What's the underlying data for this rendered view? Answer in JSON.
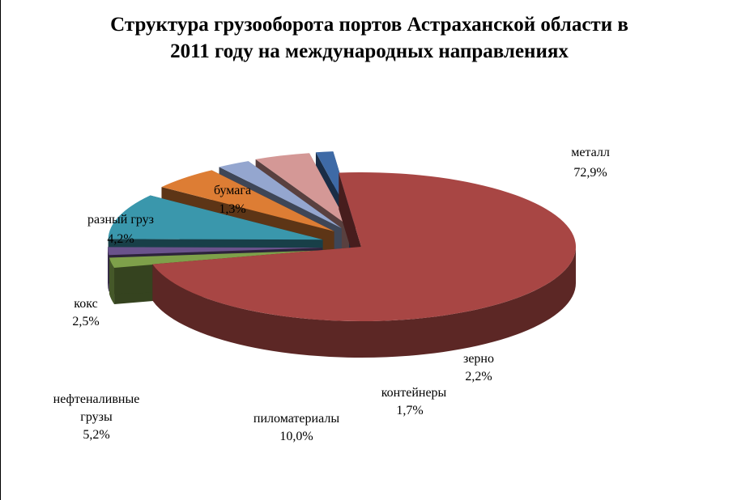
{
  "chart_data": {
    "type": "pie",
    "title": "Структура грузооборота портов Астраханской области в\n2011 году на международных направлениях",
    "style": "3d-exploded",
    "slices": [
      {
        "label": "металл",
        "value_label": "72,9%",
        "value": 72.9,
        "color": "#A84644"
      },
      {
        "label": "зерно",
        "value_label": "2,2%",
        "value": 2.2,
        "color": "#7EA04A"
      },
      {
        "label": "контейнеры",
        "value_label": "1,7%",
        "value": 1.7,
        "color": "#6A538C"
      },
      {
        "label": "пиломатериалы",
        "value_label": "10,0%",
        "value": 10.0,
        "color": "#3A97AC"
      },
      {
        "label": "нефтеналивные грузы",
        "label_lines": [
          "нефтеналивные",
          "грузы"
        ],
        "value_label": "5,2%",
        "value": 5.2,
        "color": "#DD7D34"
      },
      {
        "label": "кокс",
        "value_label": "2,5%",
        "value": 2.5,
        "color": "#94A6CF"
      },
      {
        "label": "разный груз",
        "value_label": "4,2%",
        "value": 4.2,
        "color": "#D49896"
      },
      {
        "label": "бумага",
        "value_label": "1,3%",
        "value": 1.3,
        "color": "#3E6AA6"
      }
    ]
  }
}
